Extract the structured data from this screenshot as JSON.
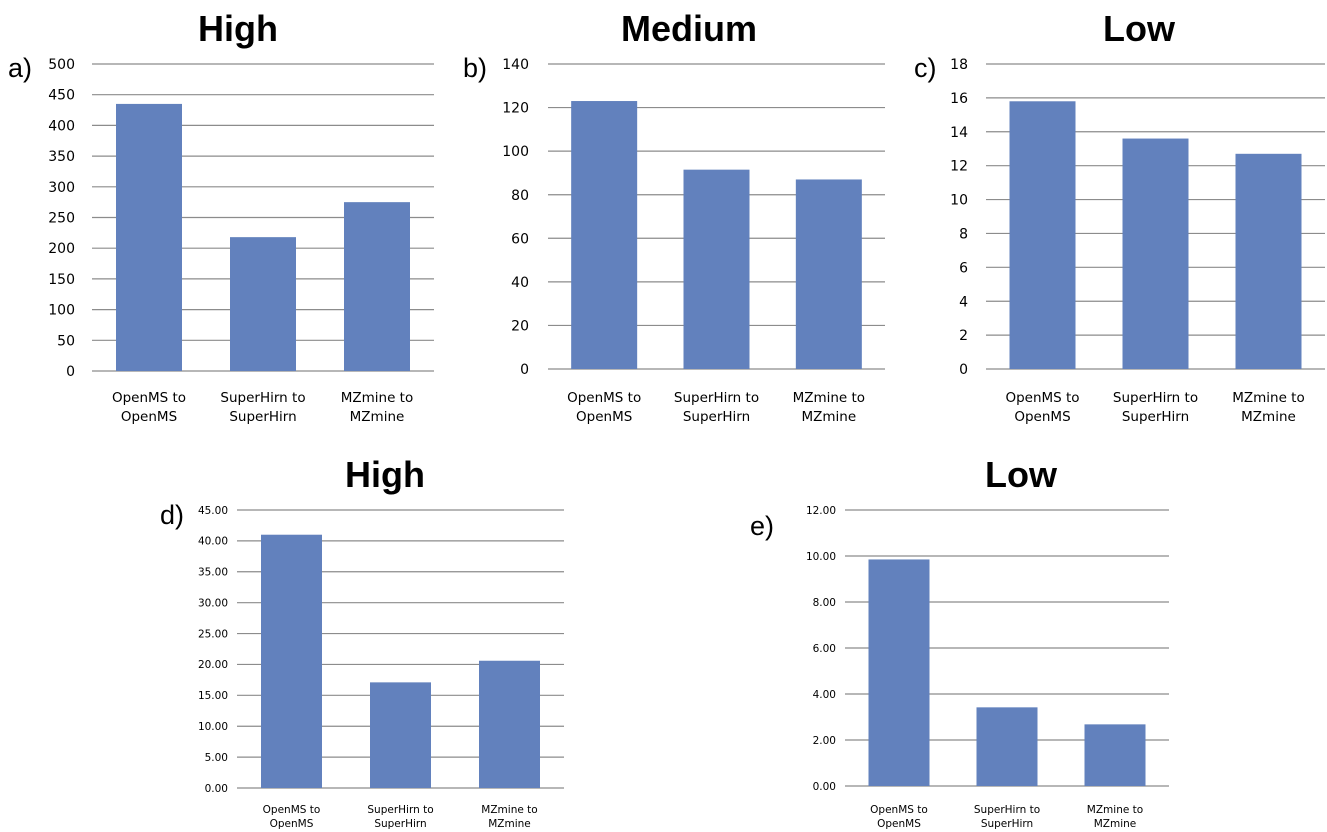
{
  "chart_data": [
    {
      "type": "bar",
      "panel_label": "a)",
      "title": "High",
      "categories": [
        "OpenMS to OpenMS",
        "SuperHirn to SuperHirn",
        "MZmine to MZmine"
      ],
      "values": [
        435,
        218,
        275
      ],
      "ylim": [
        0,
        500
      ],
      "yticks": [
        "0",
        "50",
        "100",
        "150",
        "200",
        "250",
        "300",
        "350",
        "400",
        "450",
        "500"
      ],
      "grid": true,
      "bar_color": "#6281bd"
    },
    {
      "type": "bar",
      "panel_label": "b)",
      "title": "Medium",
      "categories": [
        "OpenMS to OpenMS",
        "SuperHirn to SuperHirn",
        "MZmine to MZmine"
      ],
      "values": [
        123,
        91.5,
        87
      ],
      "ylim": [
        0,
        140
      ],
      "yticks": [
        "0",
        "20",
        "40",
        "60",
        "80",
        "100",
        "120",
        "140"
      ],
      "grid": true,
      "bar_color": "#6281bd"
    },
    {
      "type": "bar",
      "panel_label": "c)",
      "title": "Low",
      "categories": [
        "OpenMS to OpenMS",
        "SuperHirn to SuperHirn",
        "MZmine to MZmine"
      ],
      "values": [
        15.8,
        13.6,
        12.7
      ],
      "ylim": [
        0,
        18
      ],
      "yticks": [
        "0",
        "2",
        "4",
        "6",
        "8",
        "10",
        "12",
        "14",
        "16",
        "18"
      ],
      "grid": true,
      "bar_color": "#6281bd"
    },
    {
      "type": "bar",
      "panel_label": "d)",
      "title": "High",
      "categories": [
        "OpenMS to OpenMS",
        "SuperHirn to SuperHirn",
        "MZmine to MZmine"
      ],
      "values": [
        41.0,
        17.1,
        20.6
      ],
      "ylim": [
        0,
        45
      ],
      "yticks": [
        "0.00",
        "5.00",
        "10.00",
        "15.00",
        "20.00",
        "25.00",
        "30.00",
        "35.00",
        "40.00",
        "45.00"
      ],
      "grid": true,
      "bar_color": "#6281bd"
    },
    {
      "type": "bar",
      "panel_label": "e)",
      "title": "Low",
      "categories": [
        "OpenMS to OpenMS",
        "SuperHirn to SuperHirn",
        "MZmine to MZmine"
      ],
      "values": [
        9.85,
        3.42,
        2.68
      ],
      "ylim": [
        0,
        12
      ],
      "yticks": [
        "0.00",
        "2.00",
        "4.00",
        "6.00",
        "8.00",
        "10.00",
        "12.00"
      ],
      "grid": true,
      "bar_color": "#6281bd"
    }
  ]
}
